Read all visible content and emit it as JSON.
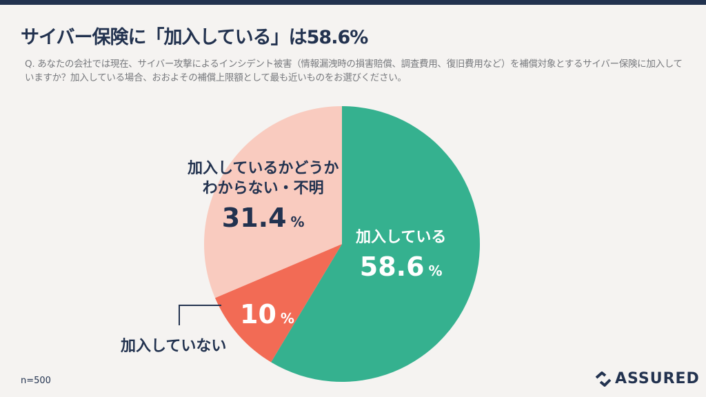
{
  "title": "サイバー保険に「加入している」は58.6%",
  "question": "Q. あなたの会社では現在、サイバー攻撃によるインシデント被害（情報漏洩時の損害賠償、調査費用、復旧費用など）を補償対象とするサイバー保険に加入していますか？加入している場合、おおよその補償上限額として最も近いものをお選びください。",
  "sample_size": "n=500",
  "logo": "ASSURED",
  "chart_data": {
    "type": "pie",
    "title": "サイバー保険に「加入している」は58.6%",
    "start": "top",
    "direction": "clockwise",
    "slices": [
      {
        "label": "加入している",
        "value": 58.6,
        "value_text": "58.6",
        "unit": "%",
        "color": "#35b18f"
      },
      {
        "label": "加入していない",
        "value": 10,
        "value_text": "10",
        "unit": "%",
        "color": "#f26b55"
      },
      {
        "label_line1": "加入しているかどうか",
        "label_line2": "わからない・不明",
        "label": "加入しているかどうかわからない・不明",
        "value": 31.4,
        "value_text": "31.4",
        "unit": "%",
        "color": "#f9cbbf"
      }
    ]
  }
}
